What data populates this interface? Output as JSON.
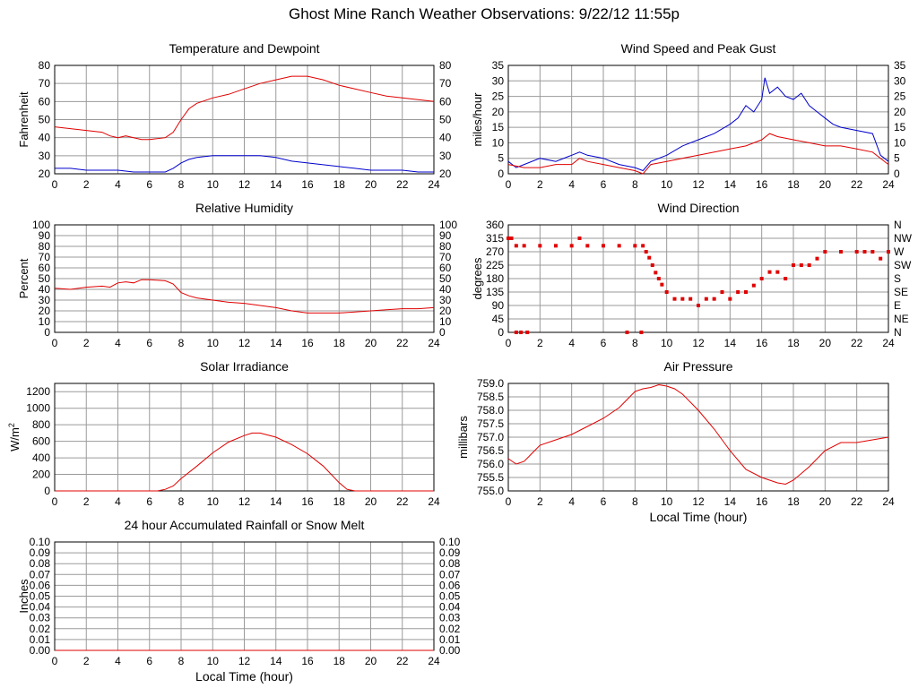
{
  "page": {
    "title": "Ghost Mine Ranch Weather Observations: 9/22/12 11:55p"
  },
  "colors": {
    "red_series": "#e00000",
    "blue_series": "#0000cc",
    "grid": "#9a9a9a",
    "axis": "#000000",
    "background": "#ffffff"
  },
  "chart_data": [
    {
      "id": "temperature",
      "type": "line",
      "title": "Temperature and Dewpoint",
      "xlabel": "",
      "ylabel": "Fahrenheit",
      "xlim": [
        0,
        24
      ],
      "ylim": [
        20,
        80
      ],
      "xticks": [
        0,
        2,
        4,
        6,
        8,
        10,
        12,
        14,
        16,
        18,
        20,
        22,
        24
      ],
      "yticks": [
        20,
        30,
        40,
        50,
        60,
        70,
        80
      ],
      "right_axis": true,
      "grid": true,
      "series": [
        {
          "color": "red",
          "x": [
            0,
            1,
            2,
            3,
            3.5,
            4,
            4.5,
            5,
            5.5,
            6,
            7,
            7.5,
            8,
            8.5,
            9,
            10,
            11,
            12,
            13,
            14,
            15,
            16,
            17,
            18,
            19,
            20,
            21,
            22,
            23,
            24
          ],
          "y": [
            46,
            45,
            44,
            43,
            41,
            40,
            41,
            40,
            39,
            39,
            40,
            43,
            50,
            56,
            59,
            62,
            64,
            67,
            70,
            72,
            74,
            74,
            72,
            69,
            67,
            65,
            63,
            62,
            61,
            60
          ]
        },
        {
          "color": "blue",
          "x": [
            0,
            1,
            2,
            3,
            4,
            5,
            6,
            7,
            7.5,
            8,
            8.5,
            9,
            10,
            11,
            12,
            13,
            14,
            15,
            16,
            17,
            18,
            19,
            20,
            21,
            22,
            23,
            24
          ],
          "y": [
            23,
            23,
            22,
            22,
            22,
            21,
            21,
            21,
            23,
            26,
            28,
            29,
            30,
            30,
            30,
            30,
            29,
            27,
            26,
            25,
            24,
            23,
            22,
            22,
            22,
            21,
            21
          ]
        }
      ]
    },
    {
      "id": "wind_speed",
      "type": "line",
      "title": "Wind Speed and Peak Gust",
      "xlabel": "",
      "ylabel": "miles/hour",
      "xlim": [
        0,
        24
      ],
      "ylim": [
        0,
        35
      ],
      "xticks": [
        0,
        2,
        4,
        6,
        8,
        10,
        12,
        14,
        16,
        18,
        20,
        22,
        24
      ],
      "yticks": [
        0,
        5,
        10,
        15,
        20,
        25,
        30,
        35
      ],
      "right_axis": true,
      "grid": true,
      "series": [
        {
          "color": "blue",
          "x": [
            0,
            0.5,
            1,
            2,
            3,
            4,
            4.5,
            5,
            6,
            7,
            8,
            8.5,
            9,
            10,
            11,
            12,
            13,
            14,
            14.5,
            15,
            15.5,
            16,
            16.2,
            16.5,
            17,
            17.5,
            18,
            18.5,
            19,
            19.5,
            20,
            20.5,
            21,
            22,
            23,
            23.5,
            24
          ],
          "y": [
            4,
            2,
            3,
            5,
            4,
            6,
            7,
            6,
            5,
            3,
            2,
            1,
            4,
            6,
            9,
            11,
            13,
            16,
            18,
            22,
            20,
            24,
            31,
            26,
            28,
            25,
            24,
            26,
            22,
            20,
            18,
            16,
            15,
            14,
            13,
            6,
            4
          ]
        },
        {
          "color": "red",
          "x": [
            0,
            1,
            2,
            3,
            4,
            4.5,
            5,
            6,
            7,
            8,
            8.5,
            9,
            10,
            11,
            12,
            13,
            14,
            15,
            16,
            16.5,
            17,
            18,
            19,
            20,
            21,
            22,
            23,
            24
          ],
          "y": [
            3,
            2,
            2,
            3,
            3,
            5,
            4,
            3,
            2,
            1,
            0,
            3,
            4,
            5,
            6,
            7,
            8,
            9,
            11,
            13,
            12,
            11,
            10,
            9,
            9,
            8,
            7,
            3
          ]
        }
      ]
    },
    {
      "id": "humidity",
      "type": "line",
      "title": "Relative Humidity",
      "xlabel": "",
      "ylabel": "Percent",
      "xlim": [
        0,
        24
      ],
      "ylim": [
        0,
        100
      ],
      "xticks": [
        0,
        2,
        4,
        6,
        8,
        10,
        12,
        14,
        16,
        18,
        20,
        22,
        24
      ],
      "yticks": [
        0,
        10,
        20,
        30,
        40,
        50,
        60,
        70,
        80,
        90,
        100
      ],
      "right_axis": true,
      "grid": true,
      "series": [
        {
          "color": "red",
          "x": [
            0,
            1,
            2,
            3,
            3.5,
            4,
            4.5,
            5,
            5.5,
            6,
            7,
            7.5,
            8,
            8.5,
            9,
            10,
            11,
            12,
            13,
            14,
            15,
            16,
            17,
            18,
            19,
            20,
            21,
            22,
            23,
            24
          ],
          "y": [
            41,
            40,
            42,
            43,
            42,
            46,
            47,
            46,
            49,
            49,
            48,
            45,
            37,
            34,
            32,
            30,
            28,
            27,
            25,
            23,
            20,
            18,
            18,
            18,
            19,
            20,
            21,
            22,
            22,
            23
          ]
        }
      ]
    },
    {
      "id": "wind_direction",
      "type": "scatter",
      "title": "Wind Direction",
      "xlabel": "",
      "ylabel": "degrees",
      "xlim": [
        0,
        24
      ],
      "ylim": [
        0,
        360
      ],
      "xticks": [
        0,
        2,
        4,
        6,
        8,
        10,
        12,
        14,
        16,
        18,
        20,
        22,
        24
      ],
      "yticks": [
        0,
        45,
        90,
        135,
        180,
        225,
        270,
        315,
        360
      ],
      "right_labels": [
        "N",
        "NE",
        "E",
        "SE",
        "S",
        "SW",
        "W",
        "NW",
        "N"
      ],
      "grid": true,
      "series": [
        {
          "color": "red",
          "x": [
            0,
            0.2,
            0.5,
            1,
            2,
            3,
            4,
            4.5,
            5,
            6,
            7,
            8,
            8.5,
            8.7,
            8.9,
            9.1,
            9.3,
            9.5,
            9.7,
            10,
            10.5,
            11,
            11.5,
            12,
            12.5,
            13,
            13.5,
            14,
            14.5,
            15,
            15.5,
            16,
            16.5,
            17,
            17.5,
            18,
            18.5,
            19,
            19.5,
            20,
            21,
            22,
            22.5,
            23,
            23.5,
            24,
            0.5,
            0.8,
            1.2,
            7.5,
            8.4
          ],
          "y": [
            315,
            315,
            290,
            290,
            290,
            290,
            290,
            315,
            290,
            290,
            290,
            290,
            290,
            270,
            250,
            225,
            200,
            180,
            160,
            135,
            112,
            112,
            112,
            90,
            112,
            112,
            135,
            112,
            135,
            135,
            157,
            180,
            202,
            202,
            180,
            225,
            225,
            225,
            247,
            270,
            270,
            270,
            270,
            270,
            247,
            270,
            0,
            0,
            0,
            0,
            0
          ]
        }
      ]
    },
    {
      "id": "solar",
      "type": "line",
      "title": "Solar Irradiance",
      "xlabel": "",
      "ylabel": "W/m",
      "ylabel_sup": "2",
      "xlim": [
        0,
        24
      ],
      "ylim": [
        0,
        1300
      ],
      "xticks": [
        0,
        2,
        4,
        6,
        8,
        10,
        12,
        14,
        16,
        18,
        20,
        22,
        24
      ],
      "yticks": [
        0,
        200,
        400,
        600,
        800,
        1000,
        1200
      ],
      "right_axis": false,
      "grid": true,
      "series": [
        {
          "color": "red",
          "x": [
            0,
            6.5,
            7,
            7.5,
            8,
            9,
            10,
            11,
            12,
            12.5,
            13,
            14,
            15,
            16,
            17,
            17.5,
            18,
            18.5,
            19,
            24
          ],
          "y": [
            0,
            0,
            20,
            60,
            150,
            300,
            460,
            590,
            670,
            700,
            700,
            650,
            560,
            450,
            300,
            200,
            100,
            20,
            0,
            0
          ]
        }
      ]
    },
    {
      "id": "pressure",
      "type": "line",
      "title": "Air Pressure",
      "xlabel": "Local Time (hour)",
      "ylabel": "millibars",
      "xlim": [
        0,
        24
      ],
      "ylim": [
        755.0,
        759.0
      ],
      "xticks": [
        0,
        2,
        4,
        6,
        8,
        10,
        12,
        14,
        16,
        18,
        20,
        22,
        24
      ],
      "yticks": [
        755.0,
        755.5,
        756.0,
        756.5,
        757.0,
        757.5,
        758.0,
        758.5,
        759.0
      ],
      "right_axis": false,
      "grid": true,
      "series": [
        {
          "color": "red",
          "x": [
            0,
            0.5,
            1,
            1.5,
            2,
            3,
            4,
            5,
            6,
            7,
            7.5,
            8,
            8.5,
            9,
            9.5,
            10,
            10.5,
            11,
            12,
            13,
            14,
            15,
            16,
            16.5,
            17,
            17.5,
            18,
            19,
            20,
            21,
            22,
            23,
            24
          ],
          "y": [
            756.2,
            756.0,
            756.1,
            756.4,
            756.7,
            756.9,
            757.1,
            757.4,
            757.7,
            758.1,
            758.4,
            758.7,
            758.8,
            758.85,
            758.95,
            758.9,
            758.8,
            758.6,
            758.0,
            757.3,
            756.5,
            755.8,
            755.5,
            755.4,
            755.3,
            755.25,
            755.4,
            755.9,
            756.5,
            756.8,
            756.8,
            756.9,
            757.0
          ]
        }
      ]
    },
    {
      "id": "rainfall",
      "type": "line",
      "title": "24 hour Accumulated Rainfall or Snow Melt",
      "xlabel": "Local Time (hour)",
      "ylabel": "Inches",
      "xlim": [
        0,
        24
      ],
      "ylim": [
        0,
        0.1
      ],
      "xticks": [
        0,
        2,
        4,
        6,
        8,
        10,
        12,
        14,
        16,
        18,
        20,
        22,
        24
      ],
      "yticks": [
        0.0,
        0.01,
        0.02,
        0.03,
        0.04,
        0.05,
        0.06,
        0.07,
        0.08,
        0.09,
        0.1
      ],
      "right_axis": true,
      "grid": true,
      "series": [
        {
          "color": "red",
          "x": [
            0,
            24
          ],
          "y": [
            0,
            0
          ]
        }
      ]
    }
  ]
}
